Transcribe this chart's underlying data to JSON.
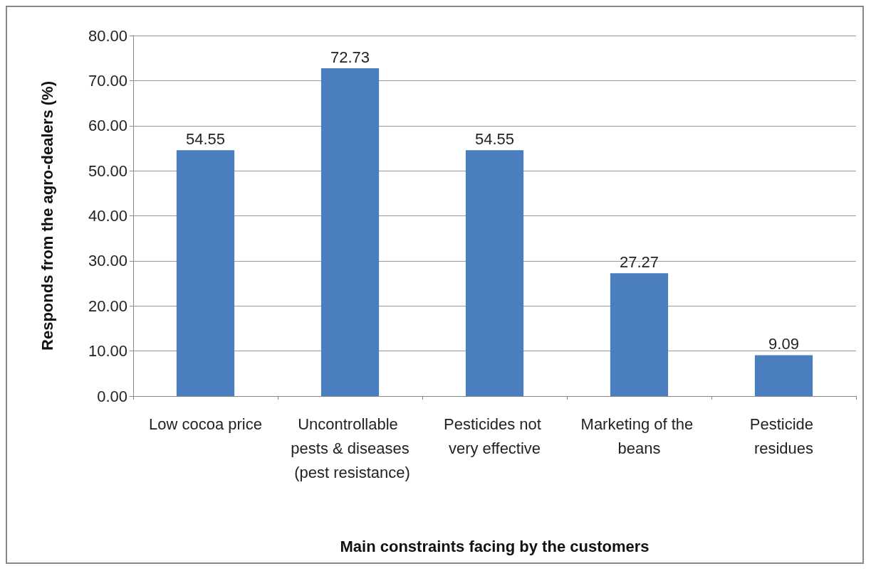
{
  "chart_data": {
    "type": "bar",
    "xlabel": "Main constraints facing by the customers",
    "ylabel": "Responds from the agro-dealers (%)",
    "categories": [
      "Low cocoa price",
      "Uncontrollable pests & diseases (pest resistance)",
      "Pesticides not very effective",
      "Marketing of the beans",
      "Pesticide residues"
    ],
    "values": [
      54.55,
      72.73,
      54.55,
      27.27,
      9.09
    ],
    "color": "#4a7ebf",
    "data_labels": true,
    "grid": "y",
    "ylim": [
      0,
      80
    ],
    "yticks": [
      {
        "value": 0,
        "label": "0.00"
      },
      {
        "value": 10,
        "label": "10.00"
      },
      {
        "value": 20,
        "label": "20.00"
      },
      {
        "value": 30,
        "label": "30.00"
      },
      {
        "value": 40,
        "label": "40.00"
      },
      {
        "value": 50,
        "label": "50.00"
      },
      {
        "value": 60,
        "label": "60.00"
      },
      {
        "value": 70,
        "label": "70.00"
      },
      {
        "value": 80,
        "label": "80.00"
      }
    ]
  }
}
